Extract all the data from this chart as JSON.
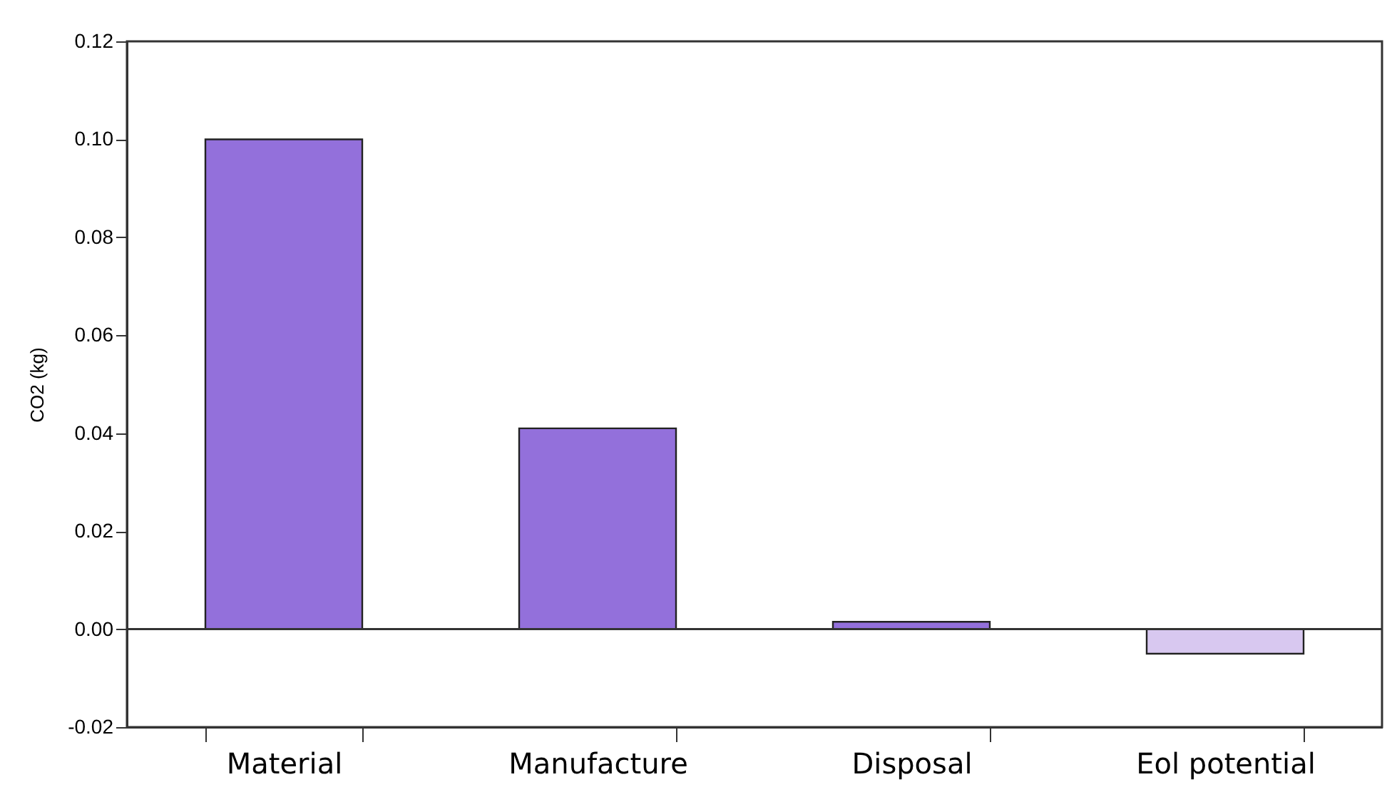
{
  "chart_data": {
    "type": "bar",
    "ylabel": "CO2 (kg)",
    "categories": [
      "Material",
      "Manufacture",
      "Disposal",
      "Eol potential"
    ],
    "values": [
      0.1,
      0.041,
      0.0015,
      -0.005
    ],
    "colors": [
      "#9370db",
      "#9370db",
      "#9370db",
      "#d8c8f0"
    ],
    "ylim": [
      -0.02,
      0.12
    ],
    "yticks": [
      -0.02,
      {
        "value": 0,
        "label": "0.00"
      },
      0.02,
      0.04,
      0.06,
      0.08,
      {
        "value": 0.1,
        "label": "0.10"
      },
      0.12
    ],
    "ref_lines": [
      {
        "axis": "y",
        "value": 0,
        "color": "#333333"
      }
    ],
    "grid": false
  }
}
